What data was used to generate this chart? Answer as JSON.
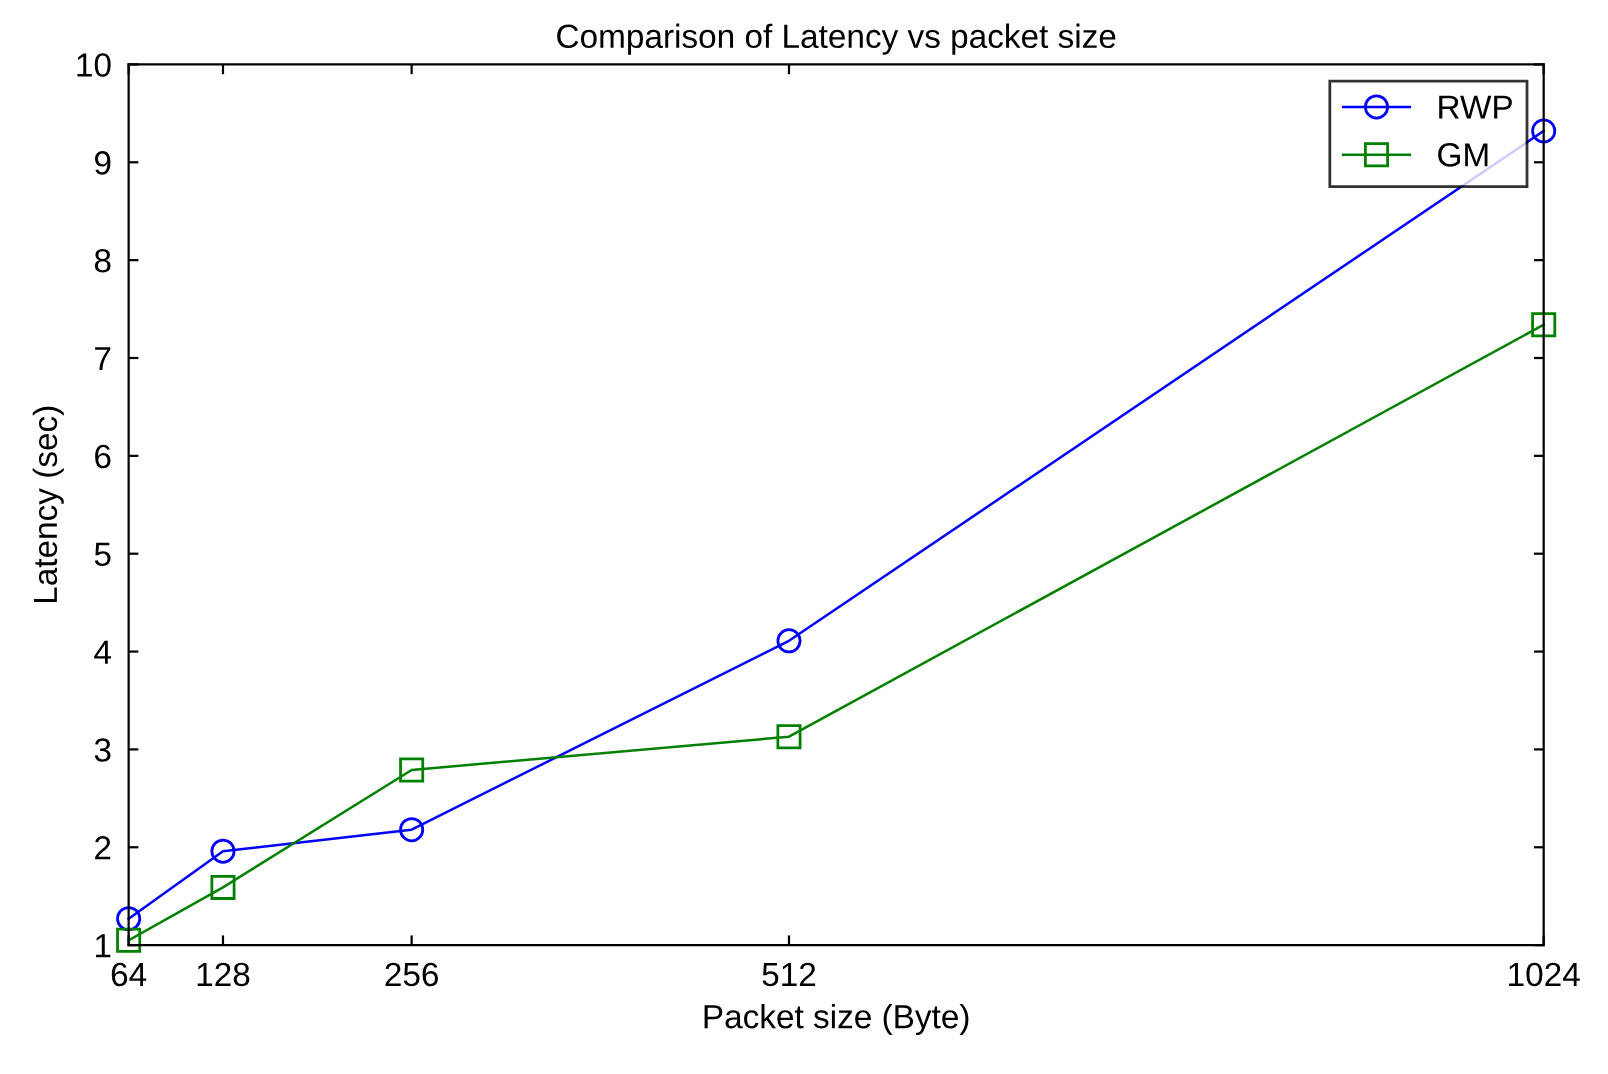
{
  "chart_data": {
    "type": "line",
    "title": "Comparison of Latency vs packet size",
    "xlabel": "Packet size (Byte)",
    "ylabel": "Latency (sec)",
    "x": [
      64,
      128,
      256,
      512,
      1024
    ],
    "series": [
      {
        "name": "RWP",
        "color": "#0000ff",
        "marker": "circle",
        "values": [
          1.27,
          1.96,
          2.18,
          4.11,
          9.32
        ]
      },
      {
        "name": "GM",
        "color": "#008000",
        "marker": "square",
        "values": [
          1.05,
          1.59,
          2.79,
          3.13,
          7.34
        ]
      }
    ],
    "xlim": [
      64,
      1024
    ],
    "xticks": [
      64,
      128,
      256,
      512,
      1024
    ],
    "ylim": [
      1,
      10
    ],
    "yticks": [
      1,
      2,
      3,
      4,
      5,
      6,
      7,
      8,
      9,
      10
    ],
    "grid": false,
    "legend": "top right",
    "line_style": "solid"
  }
}
